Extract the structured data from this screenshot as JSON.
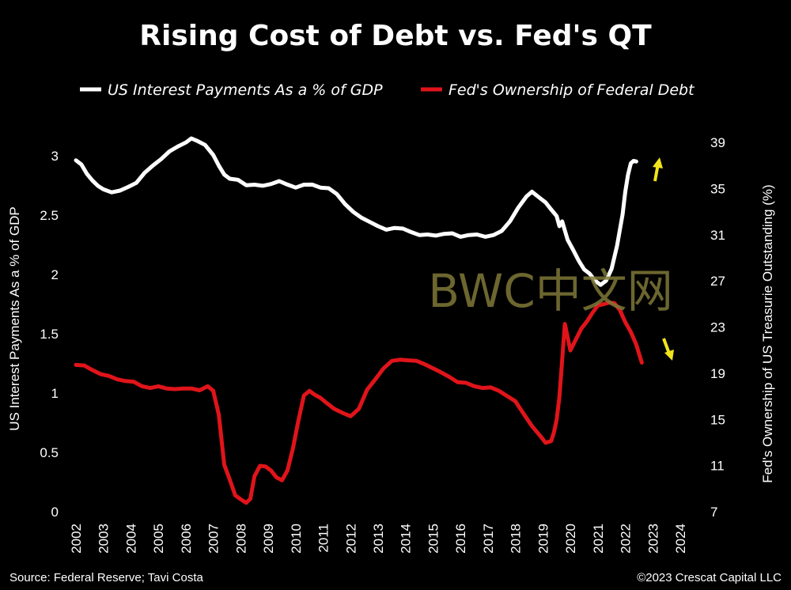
{
  "chart_data": {
    "type": "line",
    "title": "Rising Cost of Debt vs. Fed's QT",
    "legend": [
      "US Interest Payments As a % of GDP",
      "Fed's Ownership of Federal Debt"
    ],
    "ylabel_left": "US Interest Payments As a % of GDP",
    "ylabel_right": "Fed's Ownership of US Treasurie  Outstanding (%)",
    "x_ticks": [
      "2002",
      "2003",
      "2004",
      "2005",
      "2006",
      "2007",
      "2008",
      "2009",
      "2010",
      "2011",
      "2012",
      "2013",
      "2014",
      "2015",
      "2016",
      "2017",
      "2018",
      "2019",
      "2020",
      "2021",
      "2022",
      "2023",
      "2024"
    ],
    "y_left_ticks": [
      "0",
      "0.5",
      "1",
      "1.5",
      "2",
      "2.5",
      "3"
    ],
    "y_right_ticks": [
      "7",
      "11",
      "15",
      "19",
      "23",
      "27",
      "31",
      "35",
      "39"
    ],
    "xlim": [
      2002,
      2024
    ],
    "ylim_left": [
      0,
      3.3
    ],
    "ylim_right": [
      7,
      39
    ],
    "series": [
      {
        "name": "US Interest Payments As a % of GDP",
        "axis": "left",
        "color": "#ffffff",
        "x": [
          2002.0,
          2002.2,
          2002.4,
          2002.6,
          2002.8,
          2003.0,
          2003.3,
          2003.6,
          2003.9,
          2004.2,
          2004.5,
          2004.8,
          2005.1,
          2005.4,
          2005.7,
          2006.0,
          2006.2,
          2006.4,
          2006.7,
          2007.0,
          2007.2,
          2007.4,
          2007.6,
          2007.9,
          2008.2,
          2008.5,
          2008.8,
          2009.1,
          2009.4,
          2009.7,
          2010.0,
          2010.3,
          2010.6,
          2010.9,
          2011.2,
          2011.5,
          2011.8,
          2012.1,
          2012.4,
          2012.7,
          2013.0,
          2013.3,
          2013.6,
          2013.9,
          2014.2,
          2014.5,
          2014.8,
          2015.1,
          2015.4,
          2015.7,
          2016.0,
          2016.3,
          2016.6,
          2016.9,
          2017.2,
          2017.5,
          2017.8,
          2018.1,
          2018.4,
          2018.6,
          2018.9,
          2019.1,
          2019.3,
          2019.5,
          2019.6,
          2019.7,
          2019.9,
          2020.1,
          2020.3,
          2020.5,
          2020.7,
          2020.9,
          2021.1,
          2021.3,
          2021.5,
          2021.7,
          2021.9,
          2022.0,
          2022.1,
          2022.2,
          2022.3,
          2022.4
        ],
        "y": [
          2.97,
          2.92,
          2.85,
          2.8,
          2.74,
          2.72,
          2.7,
          2.7,
          2.74,
          2.78,
          2.85,
          2.92,
          2.98,
          3.03,
          3.08,
          3.12,
          3.14,
          3.13,
          3.1,
          3.0,
          2.92,
          2.85,
          2.8,
          2.8,
          2.76,
          2.75,
          2.75,
          2.77,
          2.78,
          2.76,
          2.74,
          2.75,
          2.76,
          2.74,
          2.72,
          2.68,
          2.6,
          2.52,
          2.48,
          2.45,
          2.4,
          2.38,
          2.4,
          2.38,
          2.36,
          2.34,
          2.33,
          2.33,
          2.35,
          2.34,
          2.32,
          2.34,
          2.33,
          2.32,
          2.34,
          2.36,
          2.45,
          2.57,
          2.65,
          2.7,
          2.65,
          2.6,
          2.55,
          2.5,
          2.4,
          2.45,
          2.3,
          2.2,
          2.12,
          2.05,
          2.0,
          1.95,
          1.92,
          1.94,
          2.05,
          2.25,
          2.5,
          2.7,
          2.85,
          2.93,
          2.96,
          2.96
        ]
      },
      {
        "name": "Fed's Ownership of Federal Debt",
        "axis": "right",
        "color": "#e0141a",
        "x": [
          2002.0,
          2002.3,
          2002.6,
          2002.9,
          2003.2,
          2003.5,
          2003.8,
          2004.1,
          2004.4,
          2004.7,
          2005.0,
          2005.3,
          2005.6,
          2005.9,
          2006.2,
          2006.5,
          2006.8,
          2007.0,
          2007.2,
          2007.4,
          2007.6,
          2007.8,
          2008.0,
          2008.2,
          2008.35,
          2008.5,
          2008.7,
          2008.9,
          2009.1,
          2009.3,
          2009.5,
          2009.7,
          2009.9,
          2010.1,
          2010.3,
          2010.5,
          2010.7,
          2010.9,
          2011.1,
          2011.4,
          2011.7,
          2012.0,
          2012.3,
          2012.6,
          2012.9,
          2013.2,
          2013.5,
          2013.8,
          2014.1,
          2014.4,
          2014.7,
          2015.0,
          2015.3,
          2015.6,
          2015.9,
          2016.2,
          2016.5,
          2016.8,
          2017.1,
          2017.4,
          2017.7,
          2018.0,
          2018.3,
          2018.6,
          2018.9,
          2019.1,
          2019.3,
          2019.4,
          2019.5,
          2019.6,
          2019.8,
          2020.0,
          2020.2,
          2020.4,
          2020.6,
          2020.8,
          2021.0,
          2021.2,
          2021.4,
          2021.6,
          2021.8,
          2022.0,
          2022.2,
          2022.4,
          2022.6
        ],
        "y": [
          19.8,
          19.6,
          19.3,
          19.0,
          18.7,
          18.5,
          18.4,
          18.2,
          17.9,
          17.8,
          17.8,
          17.7,
          17.7,
          17.6,
          17.7,
          17.6,
          17.8,
          17.5,
          15.5,
          11.0,
          9.8,
          8.5,
          8.0,
          7.8,
          8.2,
          10.0,
          11.0,
          11.0,
          10.5,
          10.0,
          9.8,
          10.5,
          12.5,
          15.0,
          17.0,
          17.5,
          17.2,
          16.8,
          16.5,
          16.0,
          15.5,
          15.3,
          16.0,
          17.5,
          18.5,
          19.5,
          20.0,
          20.2,
          20.2,
          20.0,
          19.8,
          19.5,
          19.0,
          18.7,
          18.3,
          18.1,
          17.9,
          17.8,
          17.7,
          17.5,
          17.1,
          16.5,
          15.5,
          14.5,
          13.5,
          13.0,
          13.2,
          13.8,
          15.0,
          17.0,
          23.2,
          21.0,
          22.0,
          22.8,
          23.5,
          24.3,
          24.8,
          25.0,
          25.2,
          25.0,
          24.5,
          23.5,
          22.5,
          21.5,
          20.0
        ]
      }
    ]
  },
  "arrows": {
    "up_color": "#f2e41c",
    "down_color": "#f2e41c"
  },
  "watermark": "BWC中文网",
  "footer": {
    "source": "Source: Federal Reserve; Tavi Costa",
    "copyright": "©2023 Crescat Capital LLC"
  }
}
